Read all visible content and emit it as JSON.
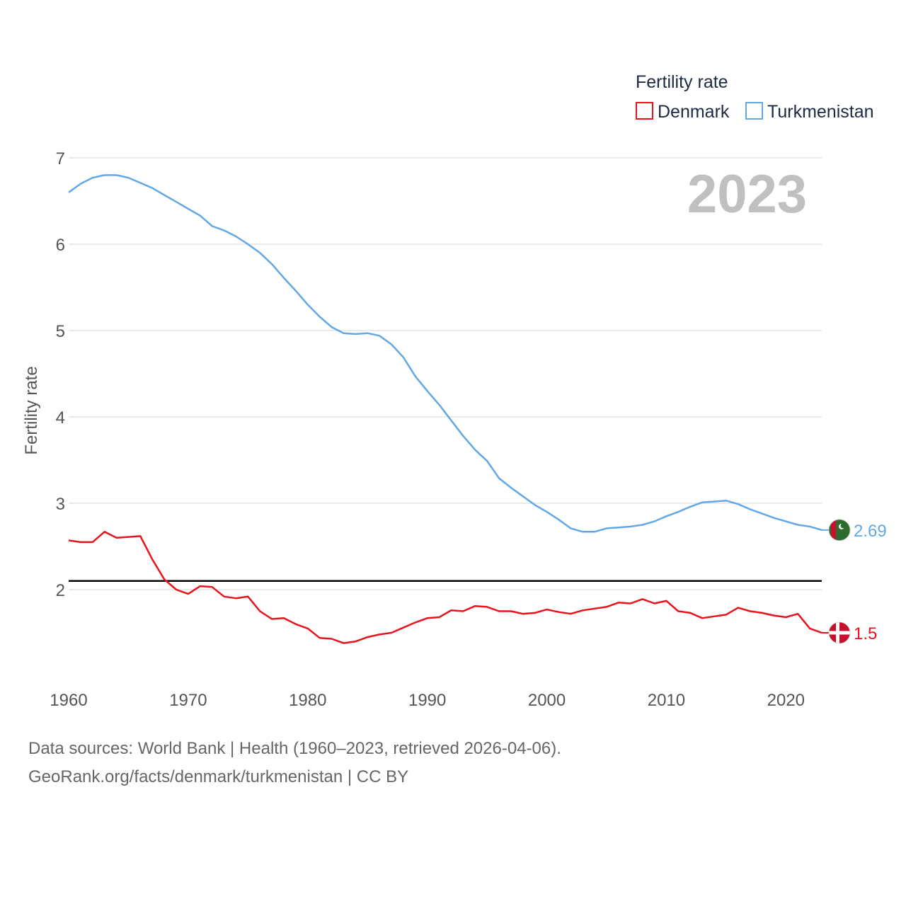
{
  "chart_data": {
    "type": "line",
    "title": "",
    "xlabel": "",
    "ylabel": "Fertility rate",
    "year_display": "2023",
    "legend": {
      "title": "Fertility rate",
      "position": "top-right",
      "entries": [
        "Denmark",
        "Turkmenistan"
      ]
    },
    "xlim": [
      1960,
      2023
    ],
    "ylim": [
      1.0,
      7.0
    ],
    "x_ticks": [
      1960,
      1970,
      1980,
      1990,
      2000,
      2010,
      2020
    ],
    "y_ticks": [
      2,
      3,
      4,
      5,
      6,
      7
    ],
    "reference_line": {
      "value": 2.1,
      "color": "#000000"
    },
    "x": [
      1960,
      1961,
      1962,
      1963,
      1964,
      1965,
      1966,
      1967,
      1968,
      1969,
      1970,
      1971,
      1972,
      1973,
      1974,
      1975,
      1976,
      1977,
      1978,
      1979,
      1980,
      1981,
      1982,
      1983,
      1984,
      1985,
      1986,
      1987,
      1988,
      1989,
      1990,
      1991,
      1992,
      1993,
      1994,
      1995,
      1996,
      1997,
      1998,
      1999,
      2000,
      2001,
      2002,
      2003,
      2004,
      2005,
      2006,
      2007,
      2008,
      2009,
      2010,
      2011,
      2012,
      2013,
      2014,
      2015,
      2016,
      2017,
      2018,
      2019,
      2020,
      2021,
      2022,
      2023
    ],
    "series": [
      {
        "name": "Denmark",
        "color": "#e8141c",
        "end_label": "1.5",
        "flag": "denmark-flag",
        "values": [
          2.57,
          2.55,
          2.55,
          2.67,
          2.6,
          2.61,
          2.62,
          2.35,
          2.12,
          2.0,
          1.95,
          2.04,
          2.03,
          1.92,
          1.9,
          1.92,
          1.75,
          1.66,
          1.67,
          1.6,
          1.55,
          1.44,
          1.43,
          1.38,
          1.4,
          1.45,
          1.48,
          1.5,
          1.56,
          1.62,
          1.67,
          1.68,
          1.76,
          1.75,
          1.81,
          1.8,
          1.75,
          1.75,
          1.72,
          1.73,
          1.77,
          1.74,
          1.72,
          1.76,
          1.78,
          1.8,
          1.85,
          1.84,
          1.89,
          1.84,
          1.87,
          1.75,
          1.73,
          1.67,
          1.69,
          1.71,
          1.79,
          1.75,
          1.73,
          1.7,
          1.68,
          1.72,
          1.55,
          1.5
        ]
      },
      {
        "name": "Turkmenistan",
        "color": "#62a8e5",
        "end_label": "2.69",
        "flag": "turkmenistan-flag",
        "values": [
          6.6,
          6.7,
          6.77,
          6.8,
          6.8,
          6.77,
          6.71,
          6.65,
          6.57,
          6.49,
          6.41,
          6.33,
          6.21,
          6.16,
          6.09,
          6.0,
          5.9,
          5.77,
          5.61,
          5.46,
          5.3,
          5.16,
          5.04,
          4.97,
          4.96,
          4.97,
          4.94,
          4.84,
          4.69,
          4.47,
          4.3,
          4.14,
          3.96,
          3.78,
          3.62,
          3.49,
          3.29,
          3.18,
          3.08,
          2.98,
          2.9,
          2.81,
          2.71,
          2.67,
          2.67,
          2.71,
          2.72,
          2.73,
          2.75,
          2.79,
          2.85,
          2.9,
          2.96,
          3.01,
          3.02,
          3.03,
          2.99,
          2.93,
          2.88,
          2.83,
          2.79,
          2.75,
          2.73,
          2.69
        ]
      }
    ]
  },
  "footer": {
    "line1": "Data sources: World Bank | Health (1960–2023, retrieved 2026-04-06).",
    "line2": "GeoRank.org/facts/denmark/turkmenistan | CC BY"
  }
}
